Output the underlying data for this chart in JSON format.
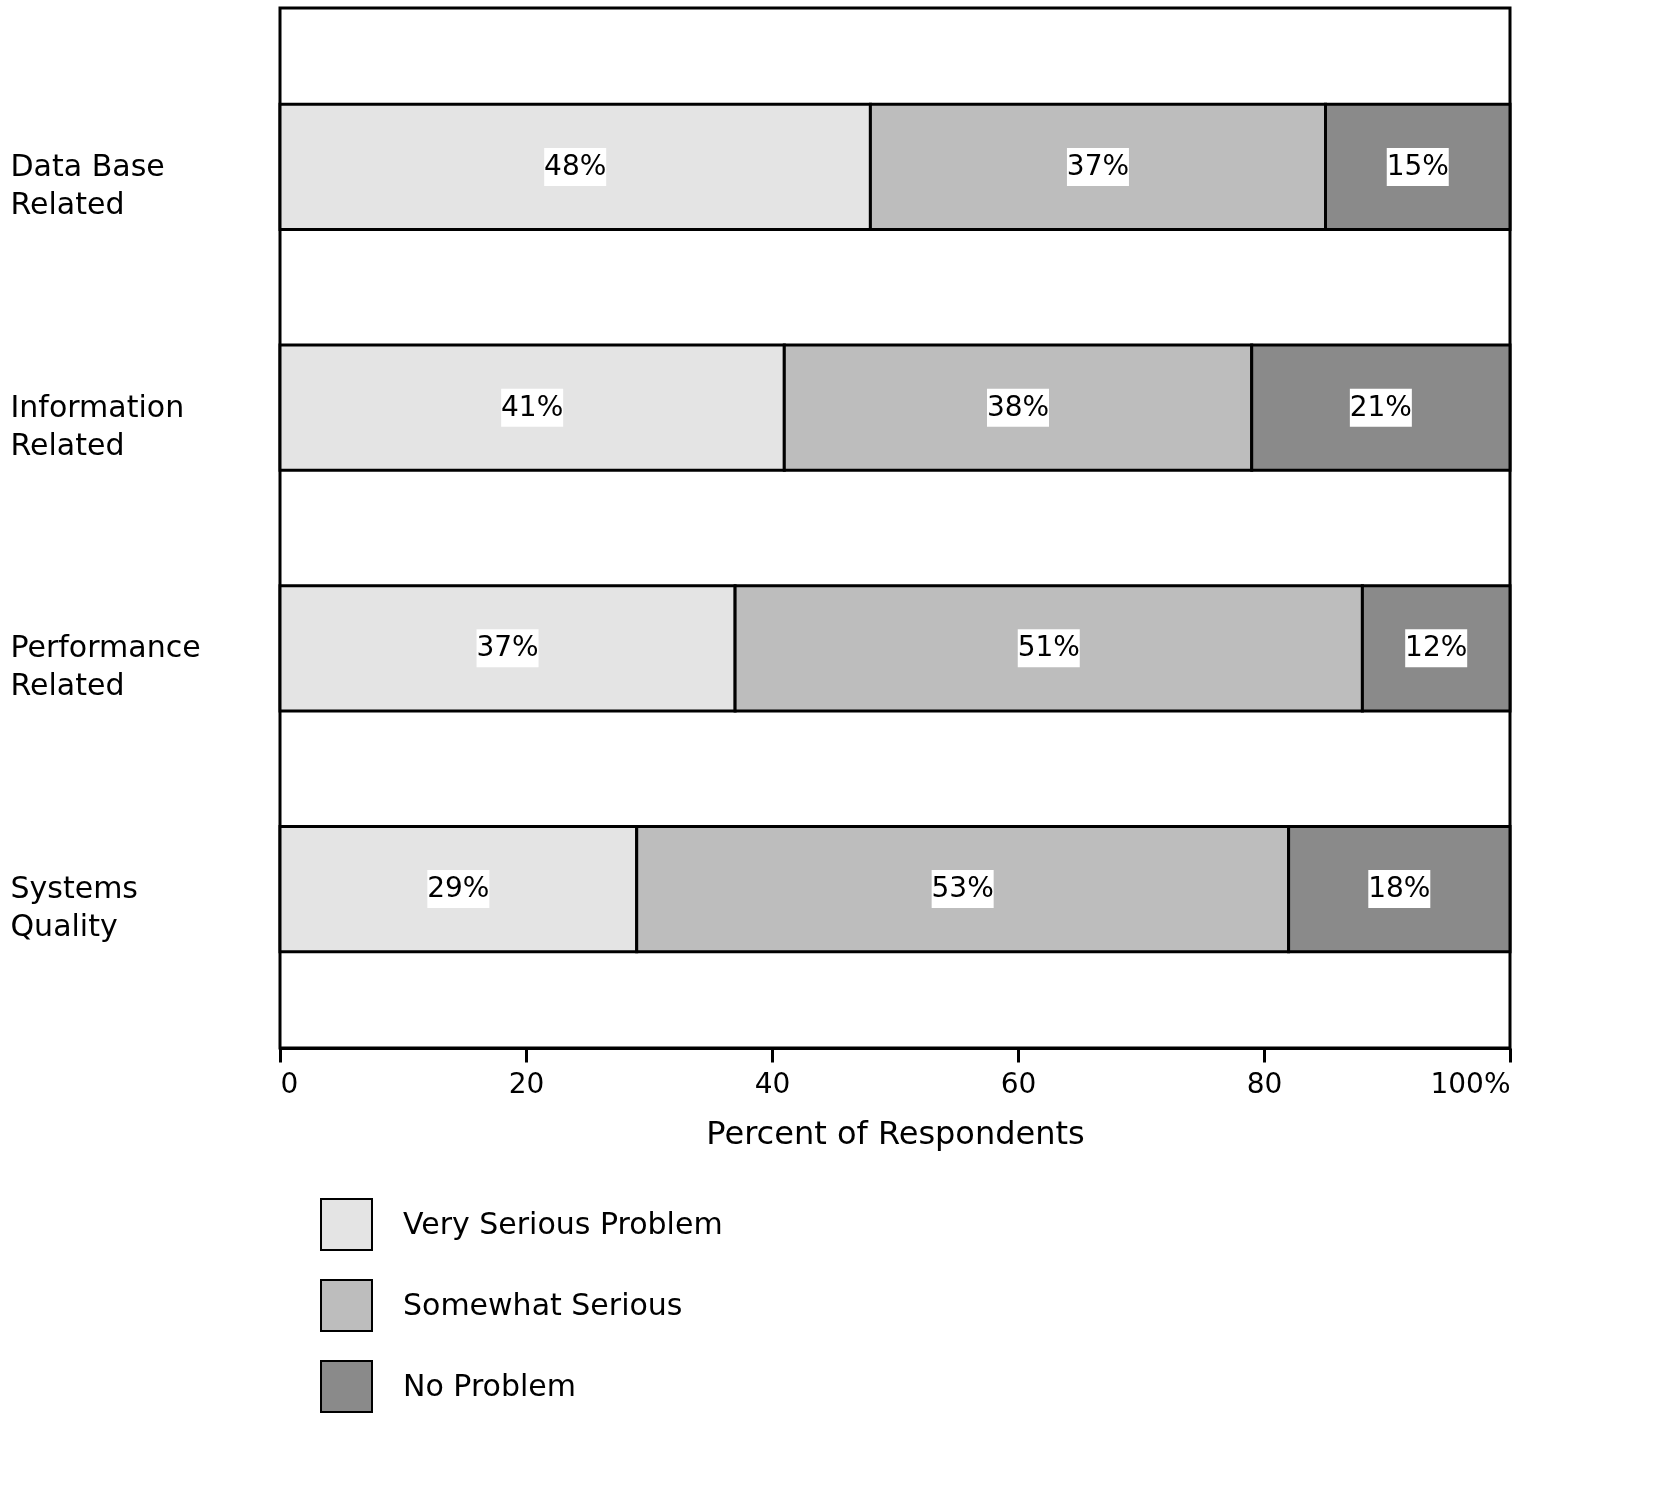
{
  "chart_data": {
    "type": "bar",
    "orientation": "horizontal",
    "stacked": true,
    "categories": [
      "Data Base Related",
      "Information Related",
      "Performance Related",
      "Systems Quality"
    ],
    "series": [
      {
        "name": "Very Serious Problem",
        "color": "#e4e4e4",
        "values": [
          48,
          41,
          37,
          29
        ],
        "value_labels": [
          "48%",
          "41%",
          "37%",
          "29%"
        ]
      },
      {
        "name": "Somewhat Serious",
        "color": "#bdbdbd",
        "values": [
          37,
          38,
          51,
          53
        ],
        "value_labels": [
          "37%",
          "38%",
          "51%",
          "53%"
        ]
      },
      {
        "name": "No Problem",
        "color": "#8a8a8a",
        "values": [
          15,
          21,
          12,
          18
        ],
        "value_labels": [
          "15%",
          "21%",
          "12%",
          "18%"
        ]
      }
    ],
    "xlabel": "Percent of Respondents",
    "xlim": [
      0,
      100
    ],
    "xticks": [
      0,
      20,
      40,
      60,
      80,
      {
        "value": 100,
        "label": "100%"
      }
    ],
    "grid": false,
    "legend": "bottom left"
  }
}
